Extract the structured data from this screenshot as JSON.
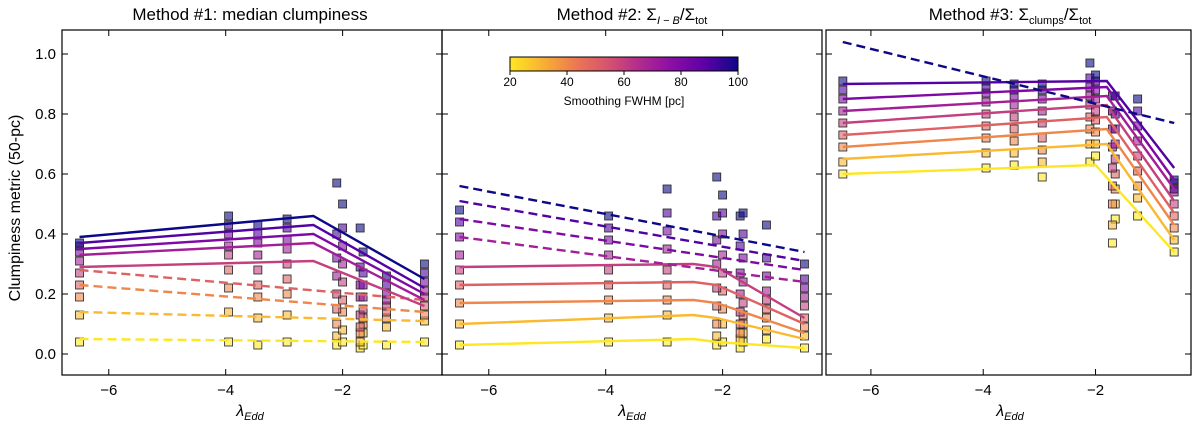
{
  "colors": {
    "cmap_stops": [
      "#fde724",
      "#f9b232",
      "#ec7853",
      "#d5546e",
      "#b12a90",
      "#8a0ca5",
      "#5c01a6",
      "#0d0887"
    ],
    "frame": "#000000",
    "marker_edge": "#222222"
  },
  "chart_data": {
    "type": "scatter+line",
    "shared": {
      "xlabel_base": "λ",
      "xlabel_sub": "Edd",
      "ylabel": "Clumpiness metric (50-pc)",
      "xlim": [
        -6.8,
        -0.3
      ],
      "ylim": [
        -0.07,
        1.08
      ],
      "xticks": [
        -6,
        -4,
        -2
      ],
      "xtick_labels": [
        "−6",
        "−4",
        "−2"
      ],
      "yticks": [
        0.0,
        0.2,
        0.4,
        0.6,
        0.8,
        1.0
      ],
      "ytick_labels": [
        "0.0",
        "0.2",
        "0.4",
        "0.6",
        "0.8",
        "1.0"
      ],
      "smoothing_fwhm_pc": [
        20,
        30,
        40,
        50,
        60,
        70,
        80,
        90,
        100
      ],
      "colorbar": {
        "label": "Smoothing FWHM [pc]",
        "min": 20,
        "max": 100,
        "ticks": [
          20,
          40,
          60,
          80,
          100
        ]
      }
    },
    "panels": [
      {
        "title_text": "Method #1: median clumpiness",
        "show_ylabels": true,
        "x_points": [
          -6.5,
          -3.95,
          -3.45,
          -2.95,
          -2.1,
          -2.0,
          -1.7,
          -1.65,
          -1.25,
          -0.6
        ],
        "series": [
          {
            "fwhm": 20,
            "y": [
              0.04,
              0.04,
              0.03,
              0.04,
              0.03,
              0.04,
              0.02,
              0.03,
              0.03,
              0.04
            ]
          },
          {
            "fwhm": 30,
            "y": [
              0.13,
              0.14,
              0.12,
              0.13,
              0.06,
              0.08,
              0.04,
              0.07,
              0.09,
              0.11
            ]
          },
          {
            "fwhm": 40,
            "y": [
              0.19,
              0.22,
              0.19,
              0.2,
              0.1,
              0.14,
              0.07,
              0.1,
              0.12,
              0.13
            ]
          },
          {
            "fwhm": 50,
            "y": [
              0.23,
              0.28,
              0.23,
              0.25,
              0.15,
              0.18,
              0.09,
              0.12,
              0.14,
              0.16
            ]
          },
          {
            "fwhm": 60,
            "y": [
              0.27,
              0.33,
              0.28,
              0.3,
              0.2,
              0.24,
              0.13,
              0.15,
              0.16,
              0.19
            ]
          },
          {
            "fwhm": 70,
            "y": [
              0.31,
              0.36,
              0.33,
              0.35,
              0.26,
              0.3,
              0.19,
              0.19,
              0.18,
              0.21
            ]
          },
          {
            "fwhm": 80,
            "y": [
              0.34,
              0.4,
              0.37,
              0.38,
              0.32,
              0.36,
              0.23,
              0.23,
              0.2,
              0.24
            ]
          },
          {
            "fwhm": 90,
            "y": [
              0.36,
              0.43,
              0.4,
              0.42,
              0.4,
              0.42,
              0.29,
              0.27,
              0.23,
              0.27
            ]
          },
          {
            "fwhm": 100,
            "y": [
              0.37,
              0.46,
              0.43,
              0.45,
              0.57,
              0.5,
              0.42,
              0.34,
              0.26,
              0.3
            ]
          }
        ],
        "fits": [
          {
            "fwhm": 20,
            "style": "dashed",
            "x": [
              -6.5,
              -0.6
            ],
            "y": [
              0.05,
              0.04
            ]
          },
          {
            "fwhm": 30,
            "style": "dashed",
            "x": [
              -6.5,
              -0.6
            ],
            "y": [
              0.14,
              0.11
            ]
          },
          {
            "fwhm": 40,
            "style": "dashed",
            "x": [
              -6.5,
              -0.6
            ],
            "y": [
              0.23,
              0.14
            ]
          },
          {
            "fwhm": 50,
            "style": "dashed",
            "x": [
              -6.5,
              -0.6
            ],
            "y": [
              0.28,
              0.18
            ]
          },
          {
            "fwhm": 60,
            "style": "solid",
            "x": [
              -6.5,
              -2.5,
              -0.6
            ],
            "y": [
              0.29,
              0.31,
              0.16
            ]
          },
          {
            "fwhm": 70,
            "style": "solid",
            "x": [
              -6.5,
              -2.5,
              -0.6
            ],
            "y": [
              0.33,
              0.37,
              0.18
            ]
          },
          {
            "fwhm": 80,
            "style": "solid",
            "x": [
              -6.5,
              -2.5,
              -0.6
            ],
            "y": [
              0.35,
              0.4,
              0.2
            ]
          },
          {
            "fwhm": 90,
            "style": "solid",
            "x": [
              -6.5,
              -2.5,
              -0.6
            ],
            "y": [
              0.37,
              0.43,
              0.22
            ]
          },
          {
            "fwhm": 100,
            "style": "solid",
            "x": [
              -6.5,
              -2.5,
              -0.6
            ],
            "y": [
              0.39,
              0.46,
              0.25
            ]
          }
        ]
      },
      {
        "title_text": "Method #2: Σ",
        "title_sub": "I − B",
        "title_tail": "/Σ",
        "title_tail_sub": "tot",
        "show_ylabels": false,
        "colorbar_in_panel": true,
        "x_points": [
          -6.5,
          -3.95,
          -2.95,
          -2.1,
          -2.0,
          -1.7,
          -1.65,
          -1.25,
          -0.6
        ],
        "series": [
          {
            "fwhm": 20,
            "y": [
              0.03,
              0.04,
              0.04,
              0.03,
              0.04,
              0.02,
              0.04,
              0.05,
              0.02
            ]
          },
          {
            "fwhm": 30,
            "y": [
              0.1,
              0.12,
              0.13,
              0.06,
              0.1,
              0.05,
              0.07,
              0.08,
              0.06
            ]
          },
          {
            "fwhm": 40,
            "y": [
              0.17,
              0.18,
              0.18,
              0.1,
              0.15,
              0.07,
              0.1,
              0.12,
              0.09
            ]
          },
          {
            "fwhm": 50,
            "y": [
              0.23,
              0.23,
              0.23,
              0.16,
              0.21,
              0.1,
              0.13,
              0.15,
              0.12
            ]
          },
          {
            "fwhm": 60,
            "y": [
              0.28,
              0.28,
              0.28,
              0.22,
              0.27,
              0.14,
              0.17,
              0.18,
              0.16
            ]
          },
          {
            "fwhm": 70,
            "y": [
              0.33,
              0.33,
              0.35,
              0.3,
              0.33,
              0.2,
              0.24,
              0.21,
              0.19
            ]
          },
          {
            "fwhm": 80,
            "y": [
              0.39,
              0.38,
              0.41,
              0.38,
              0.4,
              0.27,
              0.32,
              0.26,
              0.22
            ]
          },
          {
            "fwhm": 90,
            "y": [
              0.44,
              0.42,
              0.47,
              0.46,
              0.47,
              0.36,
              0.4,
              0.32,
              0.25
            ]
          },
          {
            "fwhm": 100,
            "y": [
              0.48,
              0.46,
              0.55,
              0.59,
              0.53,
              0.46,
              0.47,
              0.43,
              0.3
            ]
          }
        ],
        "fits": [
          {
            "fwhm": 20,
            "style": "solid",
            "x": [
              -6.5,
              -2.5,
              -2.1,
              -0.6
            ],
            "y": [
              0.03,
              0.05,
              0.04,
              0.02
            ]
          },
          {
            "fwhm": 30,
            "style": "solid",
            "x": [
              -6.5,
              -2.5,
              -2.1,
              -0.6
            ],
            "y": [
              0.1,
              0.13,
              0.12,
              0.05
            ]
          },
          {
            "fwhm": 40,
            "style": "solid",
            "x": [
              -6.5,
              -2.5,
              -2.1,
              -0.6
            ],
            "y": [
              0.17,
              0.18,
              0.17,
              0.07
            ]
          },
          {
            "fwhm": 50,
            "style": "solid",
            "x": [
              -6.5,
              -2.5,
              -2.1,
              -0.6
            ],
            "y": [
              0.23,
              0.24,
              0.23,
              0.1
            ]
          },
          {
            "fwhm": 60,
            "style": "solid",
            "x": [
              -6.5,
              -2.5,
              -2.1,
              -0.6
            ],
            "y": [
              0.29,
              0.3,
              0.29,
              0.12
            ]
          },
          {
            "fwhm": 70,
            "style": "dashed",
            "x": [
              -6.5,
              -0.6
            ],
            "y": [
              0.39,
              0.24
            ]
          },
          {
            "fwhm": 80,
            "style": "dashed",
            "x": [
              -6.5,
              -0.6
            ],
            "y": [
              0.45,
              0.28
            ]
          },
          {
            "fwhm": 90,
            "style": "dashed",
            "x": [
              -6.5,
              -0.6
            ],
            "y": [
              0.51,
              0.31
            ]
          },
          {
            "fwhm": 100,
            "style": "dashed",
            "x": [
              -6.5,
              -0.6
            ],
            "y": [
              0.56,
              0.34
            ]
          }
        ]
      },
      {
        "title_text": "Method #3: Σ",
        "title_sub": "clumps",
        "title_tail": "/Σ",
        "title_tail_sub": "tot",
        "show_ylabels": false,
        "x_points": [
          -6.5,
          -3.95,
          -3.45,
          -2.95,
          -2.1,
          -2.0,
          -1.7,
          -1.65,
          -1.25,
          -0.6
        ],
        "series": [
          {
            "fwhm": 20,
            "y": [
              0.6,
              0.62,
              0.63,
              0.59,
              0.64,
              0.66,
              0.37,
              0.45,
              0.46,
              0.34
            ]
          },
          {
            "fwhm": 30,
            "y": [
              0.64,
              0.67,
              0.67,
              0.64,
              0.7,
              0.7,
              0.43,
              0.5,
              0.52,
              0.38
            ]
          },
          {
            "fwhm": 40,
            "y": [
              0.69,
              0.72,
              0.71,
              0.68,
              0.75,
              0.74,
              0.5,
              0.55,
              0.56,
              0.42
            ]
          },
          {
            "fwhm": 50,
            "y": [
              0.73,
              0.76,
              0.75,
              0.72,
              0.79,
              0.78,
              0.56,
              0.6,
              0.61,
              0.46
            ]
          },
          {
            "fwhm": 60,
            "y": [
              0.77,
              0.8,
              0.79,
              0.77,
              0.83,
              0.81,
              0.62,
              0.65,
              0.66,
              0.5
            ]
          },
          {
            "fwhm": 70,
            "y": [
              0.81,
              0.84,
              0.83,
              0.81,
              0.86,
              0.85,
              0.69,
              0.7,
              0.71,
              0.54
            ]
          },
          {
            "fwhm": 80,
            "y": [
              0.85,
              0.87,
              0.86,
              0.85,
              0.89,
              0.88,
              0.75,
              0.75,
              0.76,
              0.57
            ]
          },
          {
            "fwhm": 90,
            "y": [
              0.88,
              0.89,
              0.88,
              0.88,
              0.92,
              0.91,
              0.81,
              0.8,
              0.81,
              0.55
            ]
          },
          {
            "fwhm": 100,
            "y": [
              0.91,
              0.91,
              0.9,
              0.9,
              0.97,
              0.93,
              0.86,
              0.86,
              0.85,
              0.58
            ]
          }
        ],
        "fits": [
          {
            "fwhm": 20,
            "style": "solid",
            "x": [
              -6.5,
              -2.0,
              -0.6
            ],
            "y": [
              0.6,
              0.63,
              0.34
            ]
          },
          {
            "fwhm": 30,
            "style": "solid",
            "x": [
              -6.5,
              -1.8,
              -0.6
            ],
            "y": [
              0.65,
              0.7,
              0.38
            ]
          },
          {
            "fwhm": 40,
            "style": "solid",
            "x": [
              -6.5,
              -1.8,
              -0.6
            ],
            "y": [
              0.69,
              0.75,
              0.43
            ]
          },
          {
            "fwhm": 50,
            "style": "solid",
            "x": [
              -6.5,
              -1.8,
              -0.6
            ],
            "y": [
              0.73,
              0.79,
              0.47
            ]
          },
          {
            "fwhm": 60,
            "style": "solid",
            "x": [
              -6.5,
              -1.8,
              -0.6
            ],
            "y": [
              0.77,
              0.83,
              0.51
            ]
          },
          {
            "fwhm": 70,
            "style": "solid",
            "x": [
              -6.5,
              -1.8,
              -0.6
            ],
            "y": [
              0.81,
              0.86,
              0.55
            ]
          },
          {
            "fwhm": 80,
            "style": "solid",
            "x": [
              -6.5,
              -1.8,
              -0.6
            ],
            "y": [
              0.85,
              0.89,
              0.58
            ]
          },
          {
            "fwhm": 90,
            "style": "solid",
            "x": [
              -6.5,
              -1.8,
              -0.6
            ],
            "y": [
              0.9,
              0.91,
              0.62
            ]
          },
          {
            "fwhm": 100,
            "style": "dashed",
            "x": [
              -6.5,
              -0.6
            ],
            "y": [
              1.04,
              0.77
            ]
          }
        ]
      }
    ]
  }
}
